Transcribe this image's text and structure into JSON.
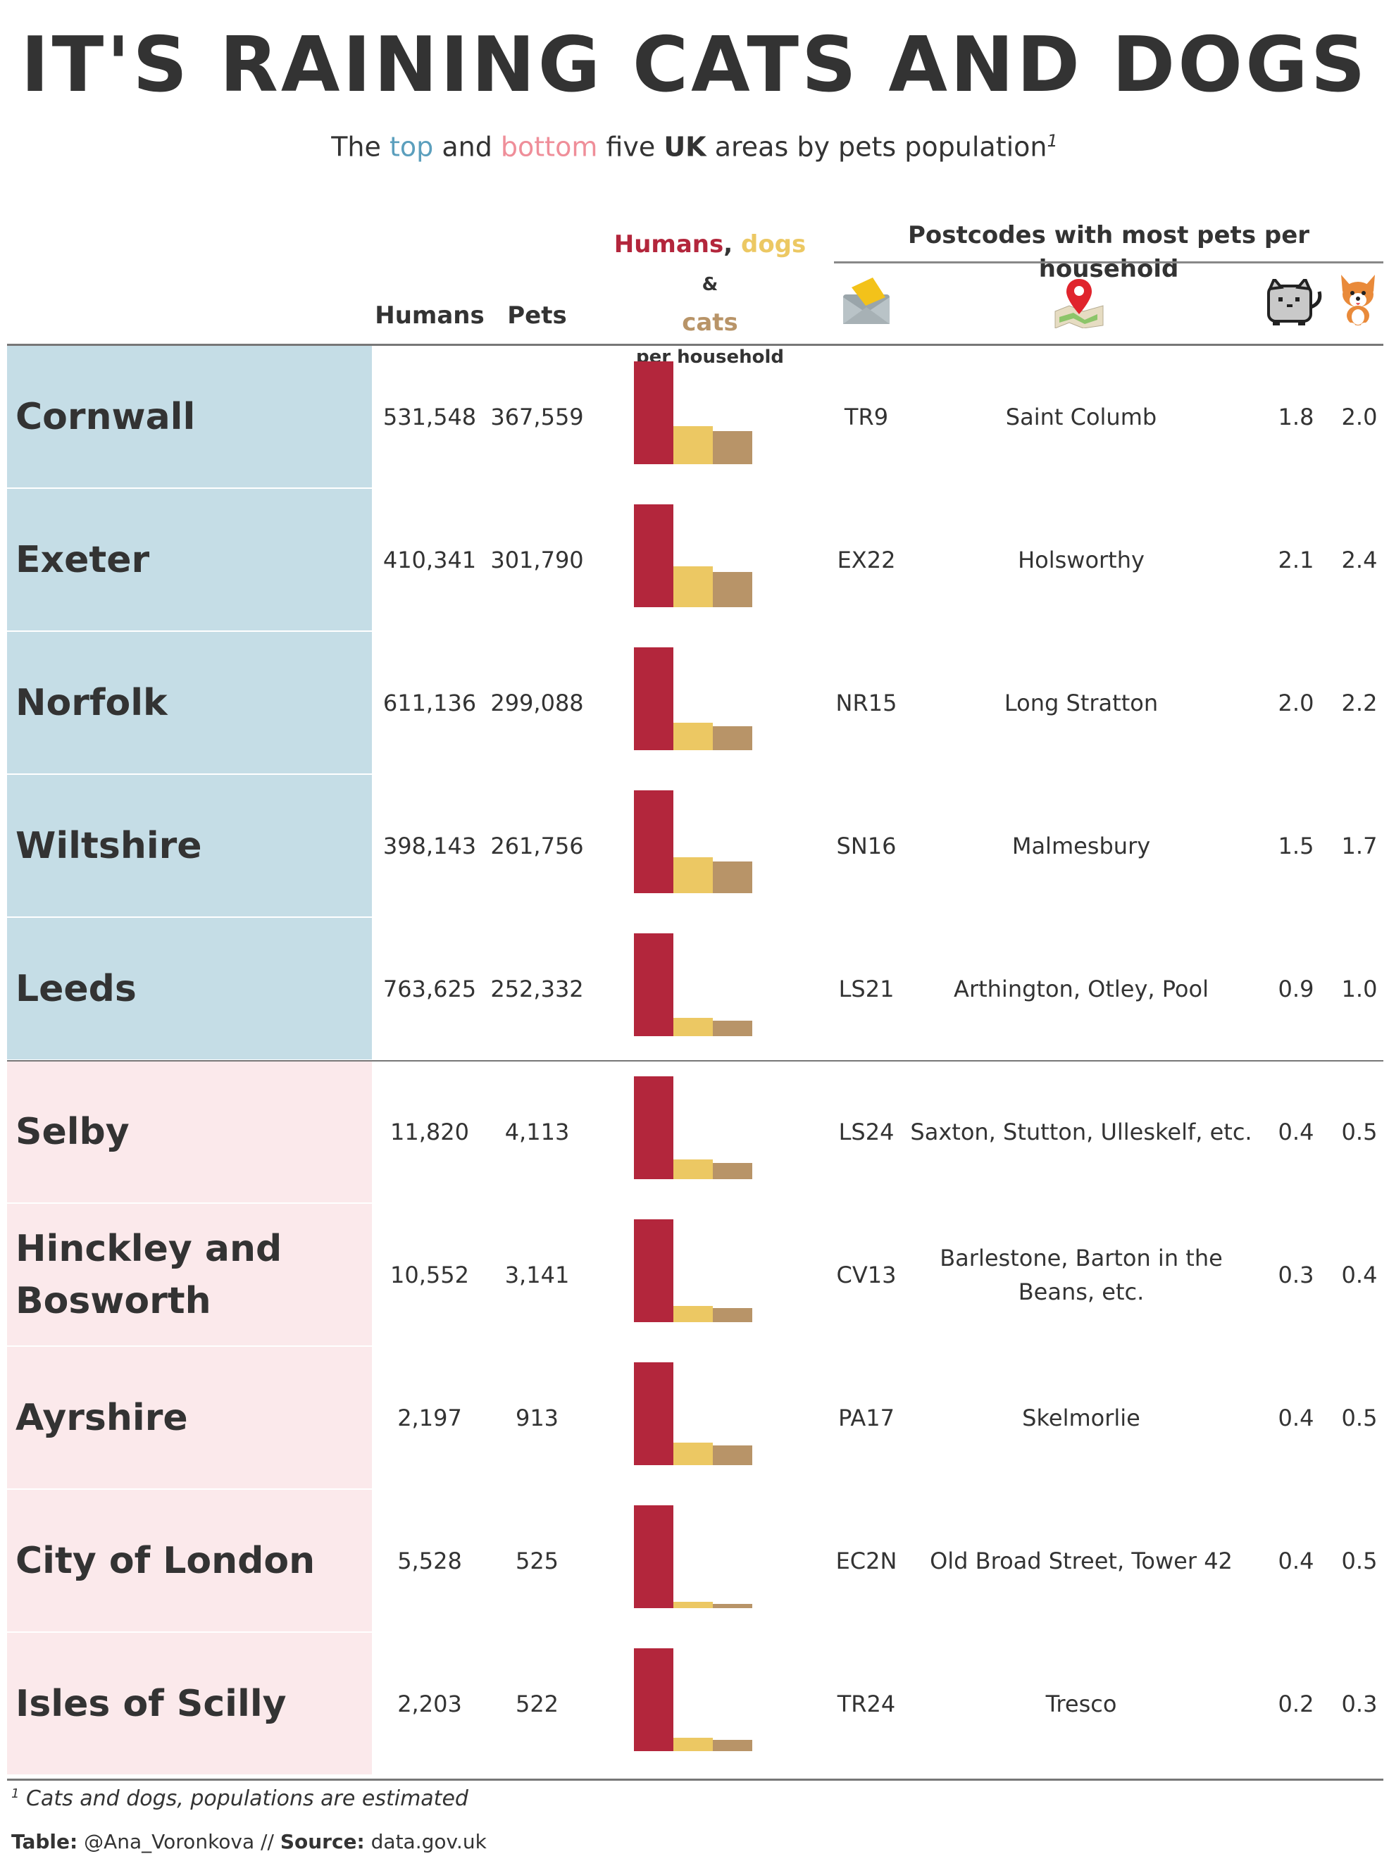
{
  "title": "IT'S RAINING CATS AND DOGS",
  "subtitle": {
    "part1": "The ",
    "top": "top",
    "part2": " and ",
    "bottom": "bottom",
    "part3": " five ",
    "uk": "UK",
    "part4": " areas by pets population",
    "sup": "1"
  },
  "headers": {
    "humans": "Humans",
    "pets": "Pets",
    "bars_humans": "Humans",
    "bars_comma": ",",
    "bars_dogs": "dogs",
    "bars_amp": "&",
    "bars_cats": "cats",
    "bars_per": "per household",
    "postcodes": "Postcodes with most pets per household"
  },
  "icons": {
    "mail": "envelope-icon",
    "map": "map-pin-icon",
    "cat": "cat-icon",
    "dog": "dog-icon"
  },
  "colors": {
    "humans": "#b3263c",
    "dogs": "#ecc863",
    "cats": "#b89468",
    "top_bg": "#c5dde6",
    "bottom_bg": "#fbe9eb",
    "top_text": "#5b9fbd",
    "bottom_text": "#ef8e99"
  },
  "chart_data": {
    "type": "bar",
    "series": [
      {
        "name": "Humans"
      },
      {
        "name": "dogs"
      },
      {
        "name": "cats"
      }
    ],
    "rows": [
      {
        "group": "top",
        "area": "Cornwall",
        "humans": "531,548",
        "pets": "367,559",
        "bars": [
          1.0,
          0.37,
          0.32
        ],
        "postcode": "TR9",
        "place": "Saint Columb",
        "cat": "1.8",
        "dog": "2.0"
      },
      {
        "group": "top",
        "area": "Exeter",
        "humans": "410,341",
        "pets": "301,790",
        "bars": [
          1.0,
          0.4,
          0.34
        ],
        "postcode": "EX22",
        "place": "Holsworthy",
        "cat": "2.1",
        "dog": "2.4"
      },
      {
        "group": "top",
        "area": "Norfolk",
        "humans": "611,136",
        "pets": "299,088",
        "bars": [
          1.0,
          0.27,
          0.23
        ],
        "postcode": "NR15",
        "place": "Long Stratton",
        "cat": "2.0",
        "dog": "2.2"
      },
      {
        "group": "top",
        "area": "Wiltshire",
        "humans": "398,143",
        "pets": "261,756",
        "bars": [
          1.0,
          0.35,
          0.31
        ],
        "postcode": "SN16",
        "place": "Malmesbury",
        "cat": "1.5",
        "dog": "1.7"
      },
      {
        "group": "top",
        "area": "Leeds",
        "humans": "763,625",
        "pets": "252,332",
        "bars": [
          1.0,
          0.18,
          0.15
        ],
        "postcode": "LS21",
        "place": "Arthington, Otley, Pool",
        "cat": "0.9",
        "dog": "1.0"
      },
      {
        "group": "bottom",
        "area": "Selby",
        "humans": "11,820",
        "pets": "4,113",
        "bars": [
          1.0,
          0.19,
          0.16
        ],
        "postcode": "LS24",
        "place": "Saxton, Stutton, Ulleskelf, etc.",
        "cat": "0.4",
        "dog": "0.5"
      },
      {
        "group": "bottom",
        "area": "Hinckley and Bosworth",
        "humans": "10,552",
        "pets": "3,141",
        "bars": [
          1.0,
          0.16,
          0.14
        ],
        "postcode": "CV13",
        "place": "Barlestone, Barton in the Beans, etc.",
        "cat": "0.3",
        "dog": "0.4"
      },
      {
        "group": "bottom",
        "area": "Ayrshire",
        "humans": "2,197",
        "pets": "913",
        "bars": [
          1.0,
          0.22,
          0.19
        ],
        "postcode": "PA17",
        "place": "Skelmorlie",
        "cat": "0.4",
        "dog": "0.5"
      },
      {
        "group": "bottom",
        "area": "City of London",
        "humans": "5,528",
        "pets": "525",
        "bars": [
          1.0,
          0.06,
          0.04
        ],
        "postcode": "EC2N",
        "place": "Old Broad Street, Tower 42",
        "cat": "0.4",
        "dog": "0.5"
      },
      {
        "group": "bottom",
        "area": "Isles of Scilly",
        "humans": "2,203",
        "pets": "522",
        "bars": [
          1.0,
          0.13,
          0.11
        ],
        "postcode": "TR24",
        "place": "Tresco",
        "cat": "0.2",
        "dog": "0.3"
      }
    ]
  },
  "footnote": {
    "sup": "1",
    "text": " Cats and dogs, populations are estimated"
  },
  "credits": {
    "table_label": "Table:",
    "table_value": " @Ana_Voronkova // ",
    "source_label": "Source:",
    "source_value": " data.gov.uk"
  }
}
